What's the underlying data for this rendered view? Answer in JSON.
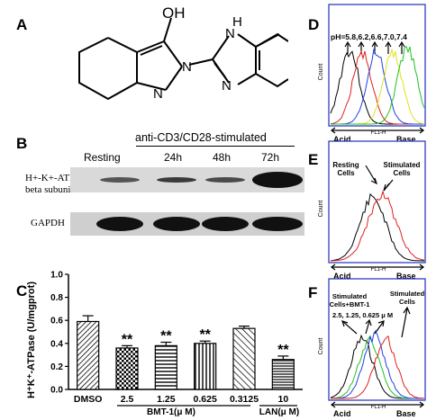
{
  "panels": {
    "A": {
      "label": "A",
      "oh": "OH",
      "nh": "H",
      "n1": "N",
      "n2": "N",
      "n3": "N",
      "n4": "N"
    },
    "B": {
      "label": "B",
      "stim_header": "anti-CD3/CD28-stimulated",
      "lanes": [
        "Resting",
        "24h",
        "48h",
        "72h"
      ],
      "row1_label": "H+-K+-ATPase beta subunit",
      "row1_line1": "H+-K+-ATPase",
      "row1_line2": "beta subunit",
      "row2_label": "GAPDH"
    },
    "C": {
      "label": "C",
      "sig_mark": "**",
      "group1_label": "BMT-1(μ M)",
      "group2_label": "LAN(μ M)"
    },
    "D": {
      "label": "D",
      "ph_label": "pH=5.8,6.2,6.6,7.0,7.4",
      "count": "Count",
      "fl": "FL1-H",
      "acid": "Acid",
      "base": "Base",
      "colors": [
        "#000000",
        "#e02020",
        "#2040e0",
        "#e0e020",
        "#20c020"
      ]
    },
    "E": {
      "label": "E",
      "resting": "Resting\nCells",
      "resting_l1": "Resting",
      "resting_l2": "Cells",
      "stim_l1": "Stimulated",
      "stim_l2": "Cells",
      "count": "Count",
      "fl": "FL1-H",
      "acid": "Acid",
      "base": "Base"
    },
    "F": {
      "label": "F",
      "sb_l1": "Stimulated",
      "sb_l2": "Cells+BMT-1",
      "sb_l3": "2.5, 1.25, 0.625 μ M",
      "st_l1": "Stimulated",
      "st_l2": "Cells",
      "count": "Count",
      "fl": "FL1-H",
      "acid": "Acid",
      "base": "Base",
      "colors": [
        "#000000",
        "#20c020",
        "#2040e0",
        "#e02020"
      ]
    }
  },
  "chart_data": {
    "type": "bar",
    "ylabel": "H⁺K⁺-ATPase (U/mgprot)",
    "ylim": [
      0,
      1.0
    ],
    "yticks": [
      "0.0",
      "0.2",
      "0.4",
      "0.6",
      "0.8",
      "1.0"
    ],
    "categories": [
      "DMSO",
      "2.5",
      "1.25",
      "0.625",
      "0.3125",
      "10"
    ],
    "values": [
      0.59,
      0.36,
      0.38,
      0.4,
      0.53,
      0.26
    ],
    "errors": [
      0.05,
      0.02,
      0.03,
      0.02,
      0.02,
      0.03
    ],
    "significant": [
      false,
      true,
      true,
      true,
      false,
      true
    ],
    "grid": false
  }
}
